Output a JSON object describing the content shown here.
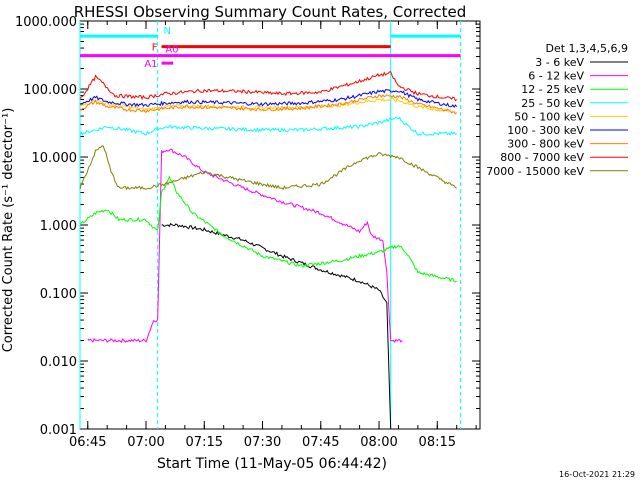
{
  "title": "RHESSI Observing Summary Count Rates, Corrected",
  "ylabel": "Corrected Count Rate (s⁻¹ detector⁻¹)",
  "xlabel": "Start Time (11-May-05 06:44:42)",
  "timestamp": "16-Oct-2021 21:29",
  "legend_header": "Det 1,3,4,5,6,9",
  "chart_data": {
    "type": "line",
    "title": "RHESSI Observing Summary Count Rates, Corrected",
    "xlabel": "Start Time (11-May-05 06:44:42)",
    "ylabel": "Corrected Count Rate (s⁻¹ detector⁻¹)",
    "y_scale": "log",
    "xlim": [
      "06:43",
      "08:26"
    ],
    "ylim": [
      0.001,
      1000
    ],
    "x_ticks": [
      "06:45",
      "07:00",
      "07:15",
      "07:30",
      "07:45",
      "08:00",
      "08:15"
    ],
    "y_ticks": [
      "0.001",
      "0.010",
      "0.100",
      "1.000",
      "10.000",
      "100.000",
      "1000.000"
    ],
    "legend_position": "right",
    "series": [
      {
        "name": "3 - 6 keV",
        "color": "#000000",
        "points": [
          [
            "07:04",
            1.0
          ],
          [
            "07:08",
            1.0
          ],
          [
            "07:15",
            0.85
          ],
          [
            "07:25",
            0.6
          ],
          [
            "07:35",
            0.35
          ],
          [
            "07:45",
            0.22
          ],
          [
            "07:55",
            0.15
          ],
          [
            "08:00",
            0.11
          ],
          [
            "08:02",
            0.07
          ],
          [
            "08:03",
            0.001
          ]
        ]
      },
      {
        "name": "6 - 12 keV",
        "color": "#ff00ff",
        "points": [
          [
            "06:45",
            0.02
          ],
          [
            "06:55",
            0.02
          ],
          [
            "07:00",
            0.02
          ],
          [
            "07:02",
            0.04
          ],
          [
            "07:03",
            0.04
          ],
          [
            "07:04",
            12
          ],
          [
            "07:06",
            13
          ],
          [
            "07:10",
            10
          ],
          [
            "07:15",
            6
          ],
          [
            "07:25",
            3.5
          ],
          [
            "07:35",
            2.2
          ],
          [
            "07:45",
            1.5
          ],
          [
            "07:55",
            0.8
          ],
          [
            "07:57",
            1.1
          ],
          [
            "07:58",
            0.7
          ],
          [
            "08:01",
            0.6
          ],
          [
            "08:02",
            0.2
          ],
          [
            "08:03",
            0.02
          ],
          [
            "08:06",
            0.02
          ]
        ]
      },
      {
        "name": "12 - 25 keV",
        "color": "#00ff00",
        "points": [
          [
            "06:43",
            1.0
          ],
          [
            "06:47",
            1.5
          ],
          [
            "06:50",
            1.7
          ],
          [
            "06:53",
            1.2
          ],
          [
            "06:57",
            1.2
          ],
          [
            "07:00",
            1.2
          ],
          [
            "07:03",
            0.8
          ],
          [
            "07:04",
            3
          ],
          [
            "07:06",
            5
          ],
          [
            "07:08",
            3
          ],
          [
            "07:12",
            1.5
          ],
          [
            "07:20",
            0.7
          ],
          [
            "07:30",
            0.35
          ],
          [
            "07:40",
            0.25
          ],
          [
            "07:50",
            0.3
          ],
          [
            "07:55",
            0.35
          ],
          [
            "08:00",
            0.4
          ],
          [
            "08:05",
            0.5
          ],
          [
            "08:07",
            0.4
          ],
          [
            "08:10",
            0.2
          ],
          [
            "08:20",
            0.15
          ]
        ]
      },
      {
        "name": "25 - 50 keV",
        "color": "#00ffff",
        "points": [
          [
            "06:43",
            22
          ],
          [
            "06:47",
            25
          ],
          [
            "06:50",
            28
          ],
          [
            "06:55",
            25
          ],
          [
            "07:00",
            22
          ],
          [
            "07:03",
            26
          ],
          [
            "07:06",
            28
          ],
          [
            "07:10",
            27
          ],
          [
            "07:20",
            26
          ],
          [
            "07:30",
            25
          ],
          [
            "07:40",
            25
          ],
          [
            "07:50",
            27
          ],
          [
            "07:55",
            28
          ],
          [
            "08:00",
            32
          ],
          [
            "08:05",
            38
          ],
          [
            "08:07",
            30
          ],
          [
            "08:10",
            22
          ],
          [
            "08:20",
            22
          ]
        ]
      },
      {
        "name": "50 - 100 keV",
        "color": "#ffcc00",
        "points": [
          [
            "06:43",
            55
          ],
          [
            "06:47",
            70
          ],
          [
            "06:50",
            60
          ],
          [
            "06:55",
            55
          ],
          [
            "07:00",
            50
          ],
          [
            "07:05",
            55
          ],
          [
            "07:10",
            57
          ],
          [
            "07:20",
            55
          ],
          [
            "07:30",
            53
          ],
          [
            "07:40",
            54
          ],
          [
            "07:50",
            58
          ],
          [
            "08:00",
            70
          ],
          [
            "08:05",
            68
          ],
          [
            "08:10",
            55
          ],
          [
            "08:20",
            45
          ]
        ]
      },
      {
        "name": "100 - 300 keV",
        "color": "#0000ff",
        "points": [
          [
            "06:43",
            60
          ],
          [
            "06:47",
            75
          ],
          [
            "06:50",
            65
          ],
          [
            "06:55",
            60
          ],
          [
            "07:00",
            58
          ],
          [
            "07:05",
            62
          ],
          [
            "07:10",
            65
          ],
          [
            "07:20",
            63
          ],
          [
            "07:30",
            60
          ],
          [
            "07:40",
            62
          ],
          [
            "07:50",
            70
          ],
          [
            "08:00",
            92
          ],
          [
            "08:05",
            95
          ],
          [
            "08:10",
            70
          ],
          [
            "08:20",
            55
          ]
        ]
      },
      {
        "name": "300 - 800 keV",
        "color": "#ff8000",
        "points": [
          [
            "06:43",
            50
          ],
          [
            "06:47",
            65
          ],
          [
            "06:50",
            55
          ],
          [
            "06:55",
            50
          ],
          [
            "07:00",
            48
          ],
          [
            "07:05",
            52
          ],
          [
            "07:10",
            55
          ],
          [
            "07:20",
            53
          ],
          [
            "07:30",
            50
          ],
          [
            "07:40",
            52
          ],
          [
            "07:50",
            60
          ],
          [
            "08:00",
            80
          ],
          [
            "08:05",
            78
          ],
          [
            "08:10",
            60
          ],
          [
            "08:20",
            45
          ]
        ]
      },
      {
        "name": "800 - 7000 keV",
        "color": "#ff0000",
        "points": [
          [
            "06:43",
            70
          ],
          [
            "06:47",
            150
          ],
          [
            "06:49",
            120
          ],
          [
            "06:52",
            80
          ],
          [
            "07:00",
            75
          ],
          [
            "07:05",
            85
          ],
          [
            "07:15",
            95
          ],
          [
            "07:25",
            92
          ],
          [
            "07:35",
            85
          ],
          [
            "07:45",
            90
          ],
          [
            "07:55",
            130
          ],
          [
            "08:00",
            160
          ],
          [
            "08:03",
            170
          ],
          [
            "08:05",
            110
          ],
          [
            "08:10",
            85
          ],
          [
            "08:20",
            70
          ]
        ]
      },
      {
        "name": "7000 - 15000 keV",
        "color": "#808000",
        "points": [
          [
            "06:43",
            3.5
          ],
          [
            "06:47",
            12
          ],
          [
            "06:49",
            15
          ],
          [
            "06:51",
            6
          ],
          [
            "06:53",
            3.5
          ],
          [
            "07:00",
            3.5
          ],
          [
            "07:05",
            4
          ],
          [
            "07:15",
            6
          ],
          [
            "07:25",
            4.5
          ],
          [
            "07:35",
            3.5
          ],
          [
            "07:45",
            4
          ],
          [
            "07:55",
            9
          ],
          [
            "08:00",
            11
          ],
          [
            "08:05",
            10
          ],
          [
            "08:10",
            7
          ],
          [
            "08:20",
            3.5
          ]
        ]
      }
    ],
    "annotations": [
      {
        "label": "N",
        "color": "#00ffff",
        "segments": [
          [
            "06:43",
            "07:03"
          ],
          [
            "08:03",
            "08:21"
          ]
        ],
        "level": 600
      },
      {
        "label": "F",
        "color": "#ff0000",
        "segments": [
          [
            "07:04",
            "08:03"
          ]
        ],
        "level": 420
      },
      {
        "label": "A1",
        "color": "#ff00ff",
        "segments": [
          [
            "07:04",
            "07:07"
          ]
        ],
        "level": 240
      },
      {
        "label": "A0",
        "color": "#ff00ff",
        "segments": [
          [
            "06:43",
            "08:21"
          ]
        ],
        "level": 310
      }
    ],
    "vertical_markers": [
      {
        "time": "06:43",
        "color": "#00ffff",
        "style": "solid"
      },
      {
        "time": "07:03",
        "color": "#00ffff",
        "style": "dashed"
      },
      {
        "time": "08:03",
        "color": "#00ffff",
        "style": "solid"
      },
      {
        "time": "08:21",
        "color": "#00ffff",
        "style": "dashed"
      }
    ]
  }
}
